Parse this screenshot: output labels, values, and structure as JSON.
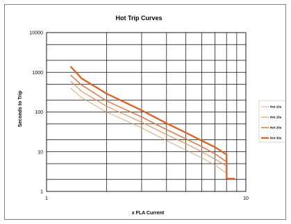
{
  "chart_data": {
    "type": "line",
    "title": "Hot Trip Curves",
    "xlabel": "x FLA Current",
    "ylabel": "Seconds to Trip",
    "x_scale": "log",
    "y_scale": "log",
    "xlim": [
      1,
      10
    ],
    "ylim": [
      1,
      10000
    ],
    "x_ticks": [
      1,
      10
    ],
    "x_tick_labels": [
      "1",
      "10"
    ],
    "y_ticks": [
      1,
      10,
      100,
      1000,
      10000
    ],
    "y_tick_labels": [
      "1",
      "10",
      "100",
      "1000",
      "10000"
    ],
    "grid": true,
    "legend_position": "right",
    "series": [
      {
        "name": "Hot 10s",
        "color": "#f29a63",
        "x": [
          1.32,
          1.5,
          2.0,
          3.0,
          4.0,
          5.0,
          6.0,
          7.0,
          8.0
        ],
        "y": [
          400,
          230,
          100,
          40,
          19,
          11,
          7,
          4.6,
          2.9
        ]
      },
      {
        "name": "Hot 15s",
        "color": "#ee8a50",
        "x": [
          1.32,
          1.5,
          2.0,
          3.0,
          4.0,
          5.0,
          6.0,
          7.0,
          8.0
        ],
        "y": [
          600,
          330,
          140,
          55,
          27,
          16,
          10,
          6.5,
          4.4
        ]
      },
      {
        "name": "Hot 20s",
        "color": "#e8733a",
        "x": [
          1.32,
          1.5,
          2.0,
          3.0,
          4.0,
          5.0,
          6.0,
          7.0,
          8.0
        ],
        "y": [
          850,
          480,
          190,
          75,
          36,
          21,
          13.5,
          8.8,
          5.6
        ]
      },
      {
        "name": "Hot 30s",
        "color": "#e45e1f",
        "x": [
          1.32,
          1.5,
          2.0,
          3.0,
          4.0,
          5.0,
          6.0,
          7.0,
          8.0,
          8.01,
          8.8
        ],
        "y": [
          1400,
          700,
          290,
          110,
          52,
          30,
          19,
          13,
          8.5,
          2.1,
          2.1
        ]
      }
    ]
  }
}
